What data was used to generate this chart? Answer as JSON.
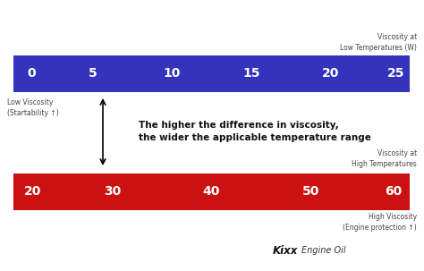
{
  "bg_color": "#ffffff",
  "blue_bar_color": "#3333bb",
  "red_bar_color": "#cc1111",
  "blue_labels": [
    "0",
    "5",
    "10",
    "15",
    "20",
    "25"
  ],
  "red_labels": [
    "20",
    "30",
    "40",
    "50",
    "60"
  ],
  "top_right_line1": "Viscosity at",
  "top_right_line2": "Low Temperatures (W)",
  "mid_right_line1": "Viscosity at",
  "mid_right_line2": "High Temperatures",
  "left_label_line1": "Low Viscosity",
  "left_label_line2": "(Startability ↑)",
  "bottom_right_line1": "High Viscosity",
  "bottom_right_line2": "(Engine protection ↑)",
  "main_text_line1": "The higher the difference in viscosity,",
  "main_text_line2": "the wider the applicable temperature range",
  "kixx_bold": "Kixx",
  "kixx_normal": " Engine Oil",
  "bar_text_color": "#ffffff",
  "main_text_color": "#111111",
  "label_text_color": "#444444"
}
